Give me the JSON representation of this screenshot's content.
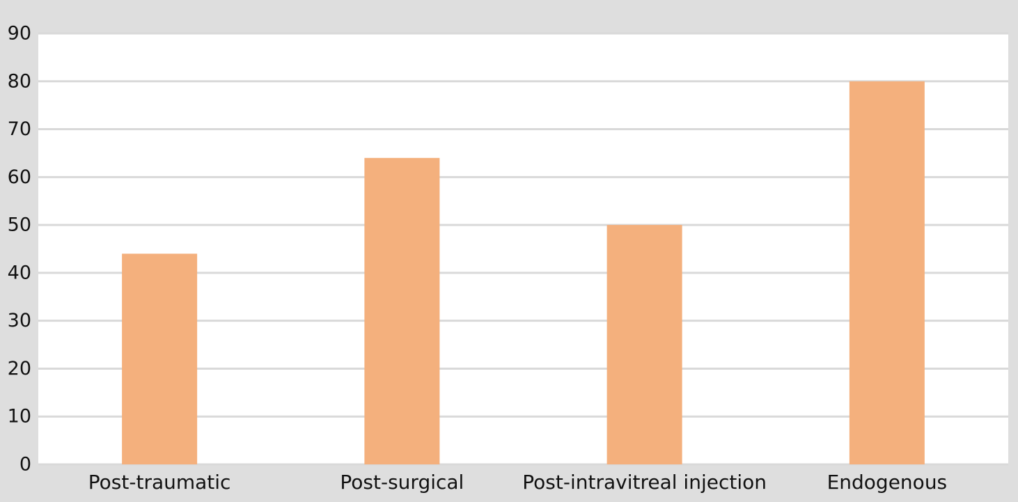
{
  "chart_data": {
    "type": "bar",
    "title": "",
    "xlabel": "",
    "ylabel": "",
    "categories": [
      "Post-traumatic",
      "Post-surgical",
      "Post-intravitreal injection",
      "Endogenous"
    ],
    "values": [
      44,
      64,
      50,
      80
    ],
    "ylim": [
      0,
      90
    ],
    "yticks": [
      0,
      10,
      20,
      30,
      40,
      50,
      60,
      70,
      80,
      90
    ],
    "grid": true,
    "legend": "none",
    "colors": {
      "bar": "#f4b07d",
      "plot_background": "#ffffff",
      "figure_background": "#dedede",
      "gridline": "#d9d9d9",
      "text": "#111111"
    }
  }
}
